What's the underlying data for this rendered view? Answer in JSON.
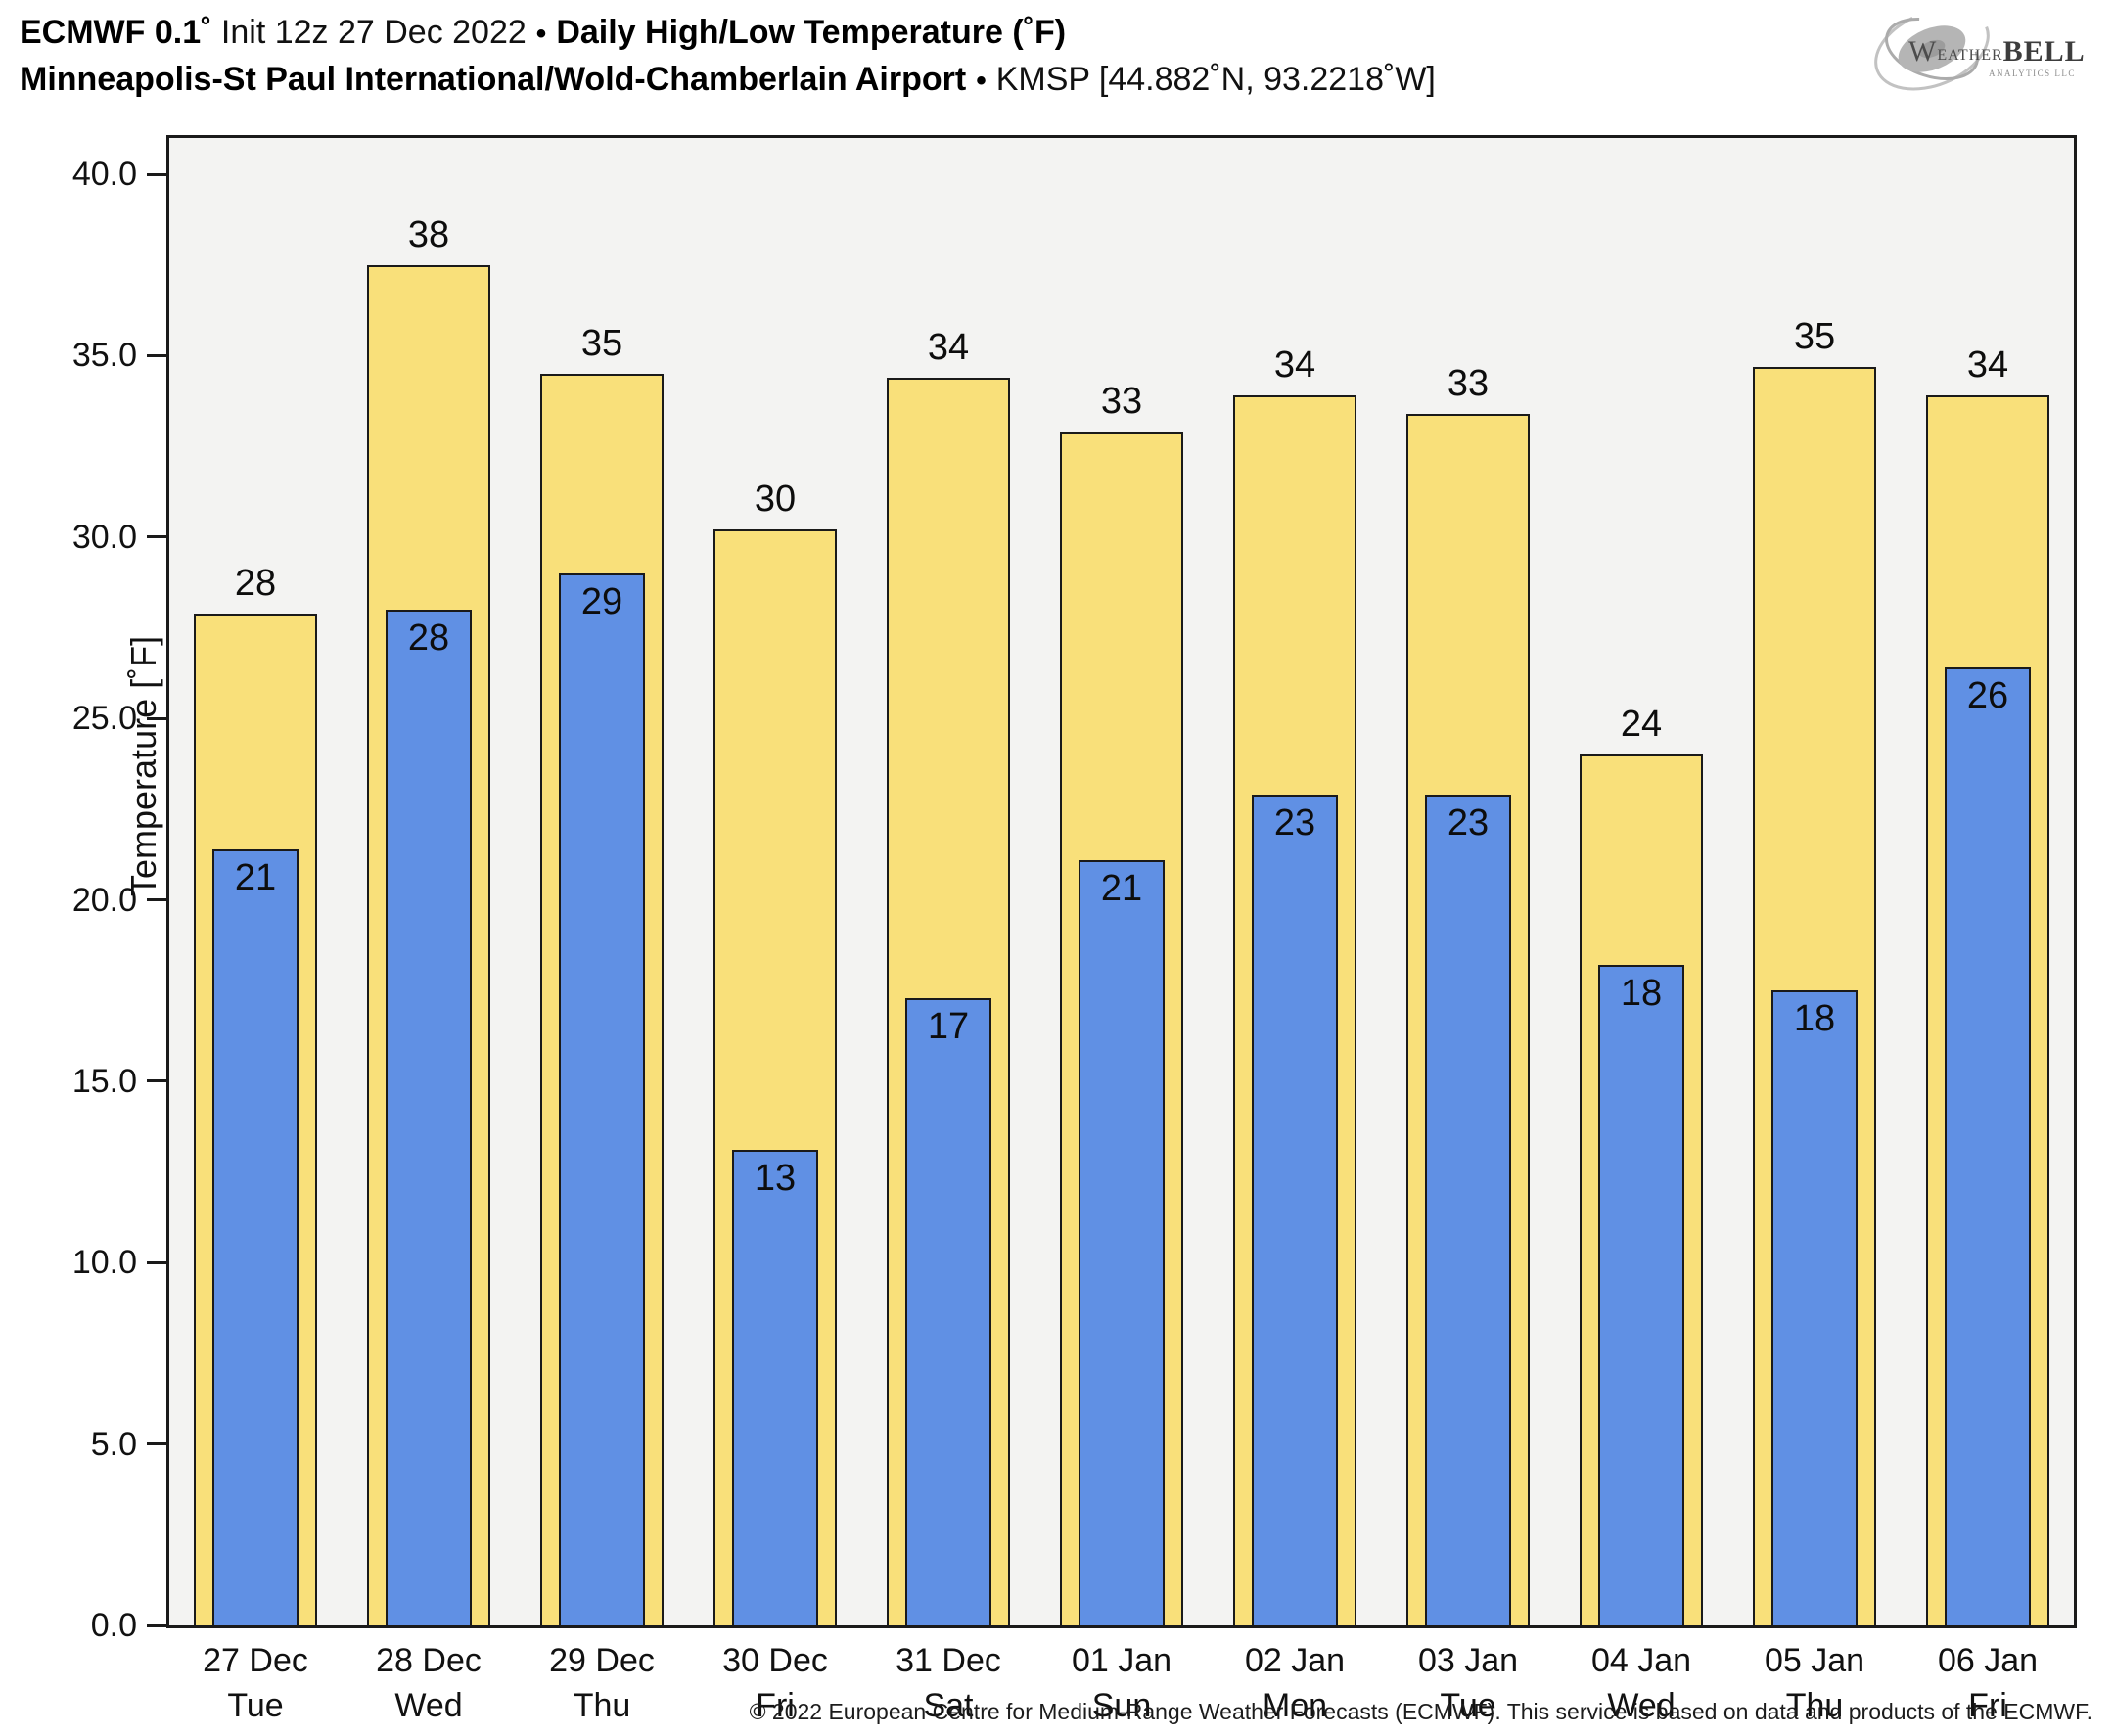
{
  "header": {
    "line1": {
      "model": "ECMWF 0.1˚",
      "init": "Init 12z 27 Dec 2022",
      "dot": "•",
      "product": "Daily High/Low Temperature (˚F)"
    },
    "line2": {
      "station": "Minneapolis-St Paul International/Wold-Chamberlain Airport",
      "dot": "•",
      "id": "KMSP [44.882˚N, 93.2218˚W]"
    }
  },
  "logo": {
    "brand_w": "W",
    "brand_eather": "EATHER",
    "brand_bell": "BELL",
    "sub": "ANALYTICS LLC"
  },
  "footer": {
    "copyright": "© 2022 European Centre for Medium-Range Weather Forecasts (ECMWF). This service is based on data and products of the ECMWF."
  },
  "chart_data": {
    "type": "bar",
    "title": "ECMWF 0.1˚ Init 12z 27 Dec 2022 • Daily High/Low Temperature (˚F)",
    "subtitle": "Minneapolis-St Paul International/Wold-Chamberlain Airport • KMSP [44.882˚N, 93.2218˚W]",
    "ylabel": "Temperature [˚F]",
    "ylim": [
      0,
      41.0
    ],
    "y_ticks": [
      0,
      5,
      10,
      15,
      20,
      25,
      30,
      35,
      40
    ],
    "y_tick_labels": [
      "0.0",
      "5.0",
      "10.0",
      "15.0",
      "20.0",
      "25.0",
      "30.0",
      "35.0",
      "40.0"
    ],
    "grid": false,
    "legend": false,
    "plot_bg": "#f3f3f2",
    "categories": [
      {
        "date": "27 Dec",
        "day": "Tue"
      },
      {
        "date": "28 Dec",
        "day": "Wed"
      },
      {
        "date": "29 Dec",
        "day": "Thu"
      },
      {
        "date": "30 Dec",
        "day": "Fri"
      },
      {
        "date": "31 Dec",
        "day": "Sat"
      },
      {
        "date": "01 Jan",
        "day": "Sun"
      },
      {
        "date": "02 Jan",
        "day": "Mon"
      },
      {
        "date": "03 Jan",
        "day": "Tue"
      },
      {
        "date": "04 Jan",
        "day": "Wed"
      },
      {
        "date": "05 Jan",
        "day": "Thu"
      },
      {
        "date": "06 Jan",
        "day": "Fri"
      }
    ],
    "series": [
      {
        "name": "Daily High",
        "color": "#f9e07a",
        "edge_color": "#1a1a1a",
        "values": [
          28,
          38,
          35,
          30,
          34,
          33,
          34,
          33,
          24,
          35,
          34
        ],
        "bar_tops": [
          27.9,
          37.5,
          34.5,
          30.2,
          34.4,
          32.9,
          33.9,
          33.4,
          24.0,
          34.7,
          33.9
        ]
      },
      {
        "name": "Daily Low",
        "color": "#6090e4",
        "edge_color": "#1a1a1a",
        "values": [
          21,
          28,
          29,
          13,
          17,
          21,
          23,
          23,
          18,
          18,
          26
        ],
        "bar_tops": [
          21.4,
          28.0,
          29.0,
          13.1,
          17.3,
          21.1,
          22.9,
          22.9,
          18.2,
          17.5,
          26.4
        ]
      }
    ]
  }
}
